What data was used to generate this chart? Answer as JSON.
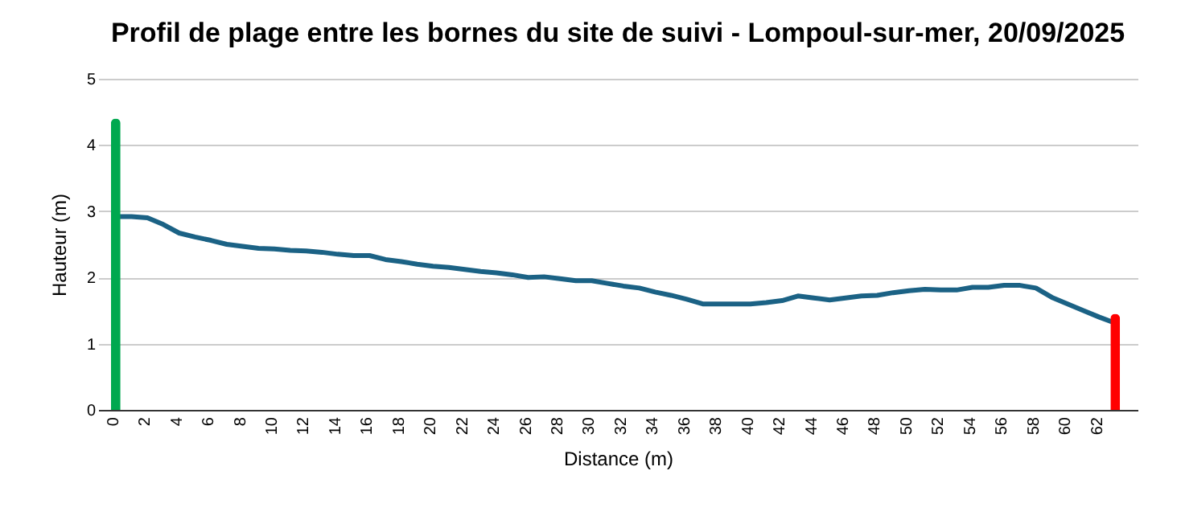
{
  "chart_data": {
    "type": "line",
    "title": "Profil de plage entre les bornes du site de suivi - Lompoul-sur-mer, 20/09/2025",
    "xlabel": "Distance (m)",
    "ylabel": "Hauteur (m)",
    "x": [
      0,
      1,
      2,
      3,
      4,
      5,
      6,
      7,
      8,
      9,
      10,
      11,
      12,
      13,
      14,
      15,
      16,
      17,
      18,
      19,
      20,
      21,
      22,
      23,
      24,
      25,
      26,
      27,
      28,
      29,
      30,
      31,
      32,
      33,
      34,
      35,
      36,
      37,
      38,
      39,
      40,
      41,
      42,
      43,
      44,
      45,
      46,
      47,
      48,
      49,
      50,
      51,
      52,
      53,
      54,
      55,
      56,
      57,
      58,
      59,
      60,
      61,
      62,
      63
    ],
    "series": [
      {
        "type": "line",
        "color": "#1b6285",
        "values": [
          2.92,
          2.92,
          2.9,
          2.8,
          2.67,
          2.61,
          2.56,
          2.5,
          2.47,
          2.44,
          2.43,
          2.41,
          2.4,
          2.38,
          2.35,
          2.33,
          2.33,
          2.27,
          2.24,
          2.2,
          2.17,
          2.15,
          2.12,
          2.09,
          2.07,
          2.04,
          2.0,
          2.01,
          1.98,
          1.95,
          1.95,
          1.91,
          1.87,
          1.84,
          1.78,
          1.73,
          1.67,
          1.6,
          1.6,
          1.6,
          1.6,
          1.62,
          1.65,
          1.72,
          1.69,
          1.66,
          1.69,
          1.72,
          1.73,
          1.77,
          1.8,
          1.82,
          1.81,
          1.81,
          1.85,
          1.85,
          1.88,
          1.88,
          1.84,
          1.7,
          1.6,
          1.5,
          1.4,
          1.31
        ]
      },
      {
        "type": "bar",
        "color": "#00a84f",
        "x": [
          0
        ],
        "values": [
          4.4
        ]
      },
      {
        "type": "bar",
        "color": "#ff0000",
        "x": [
          63
        ],
        "values": [
          1.45
        ]
      }
    ],
    "xlim": [
      -0.6,
      63.9
    ],
    "xticks": [
      0,
      2,
      4,
      6,
      8,
      10,
      12,
      14,
      16,
      18,
      20,
      22,
      24,
      26,
      28,
      30,
      32,
      34,
      36,
      38,
      40,
      42,
      44,
      46,
      48,
      50,
      52,
      54,
      56,
      58,
      60,
      62
    ],
    "ylim": [
      0,
      5
    ],
    "yticks": [
      0,
      1,
      2,
      3,
      4,
      5
    ],
    "grid": "y",
    "legend": false,
    "marker": "none",
    "line_style": "solid"
  }
}
